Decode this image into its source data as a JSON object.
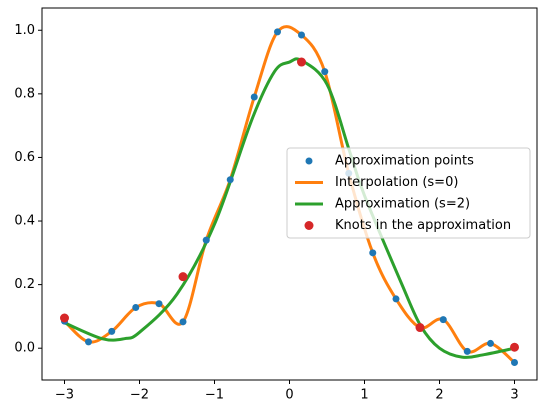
{
  "chart_data": {
    "type": "line",
    "xlim": [
      -3.3,
      3.3
    ],
    "ylim": [
      -0.1,
      1.07
    ],
    "xticks": [
      {
        "value": -3,
        "label": "−3"
      },
      {
        "value": -2,
        "label": "−2"
      },
      {
        "value": -1,
        "label": "−1"
      },
      0,
      1,
      2,
      3
    ],
    "yticks": [
      {
        "value": 0,
        "label": "0.0"
      },
      {
        "value": 0.2,
        "label": "0.2"
      },
      {
        "value": 0.4,
        "label": "0.4"
      },
      {
        "value": 0.6,
        "label": "0.6"
      },
      {
        "value": 0.8,
        "label": "0.8"
      },
      {
        "value": 1,
        "label": "1.0"
      }
    ],
    "legend": "center right",
    "series": [
      {
        "name": "Approximation points",
        "style": "scatter",
        "color": "#1f77b4",
        "x": [
          -3,
          -2.68,
          -2.37,
          -2.05,
          -1.74,
          -1.42,
          -1.11,
          -0.79,
          -0.47,
          -0.16,
          0.16,
          0.47,
          0.79,
          1.11,
          1.42,
          1.74,
          2.05,
          2.37,
          2.68,
          3
        ],
        "values": [
          0.085,
          0.02,
          0.053,
          0.128,
          0.14,
          0.083,
          0.34,
          0.53,
          0.79,
          0.995,
          0.985,
          0.87,
          0.55,
          0.3,
          0.155,
          0.065,
          0.09,
          -0.01,
          0.015,
          -0.045
        ]
      },
      {
        "name": "Interpolation (s=0)",
        "style": "line",
        "color": "#ff7f0e",
        "x": [
          -3,
          -2.68,
          -2.37,
          -2.05,
          -1.74,
          -1.42,
          -1.11,
          -0.79,
          -0.47,
          -0.16,
          0.16,
          0.47,
          0.79,
          1.11,
          1.42,
          1.74,
          2.05,
          2.37,
          2.68,
          3
        ],
        "values": [
          0.085,
          0.02,
          0.053,
          0.128,
          0.14,
          0.083,
          0.34,
          0.53,
          0.79,
          0.995,
          0.985,
          0.87,
          0.55,
          0.3,
          0.155,
          0.065,
          0.09,
          -0.01,
          0.015,
          -0.045
        ]
      },
      {
        "name": "Approximation (s=2)",
        "style": "line",
        "color": "#2ca02c",
        "x": [
          -3,
          -2.5,
          -2.2,
          -2,
          -1.5,
          -1,
          -0.5,
          -0.2,
          0,
          0.16,
          0.5,
          0.8,
          1,
          1.5,
          1.75,
          2,
          2.3,
          2.6,
          3
        ],
        "values": [
          0.08,
          0.03,
          0.03,
          0.05,
          0.17,
          0.39,
          0.72,
          0.87,
          0.9,
          0.905,
          0.83,
          0.62,
          0.48,
          0.2,
          0.07,
          0,
          -0.028,
          -0.02,
          0
        ]
      },
      {
        "name": "Knots in the approximation",
        "style": "scatter",
        "color": "#d62728",
        "x": [
          -3,
          -1.42,
          0.16,
          1.74,
          3
        ],
        "values": [
          0.095,
          0.225,
          0.9,
          0.065,
          0.003
        ]
      }
    ]
  }
}
